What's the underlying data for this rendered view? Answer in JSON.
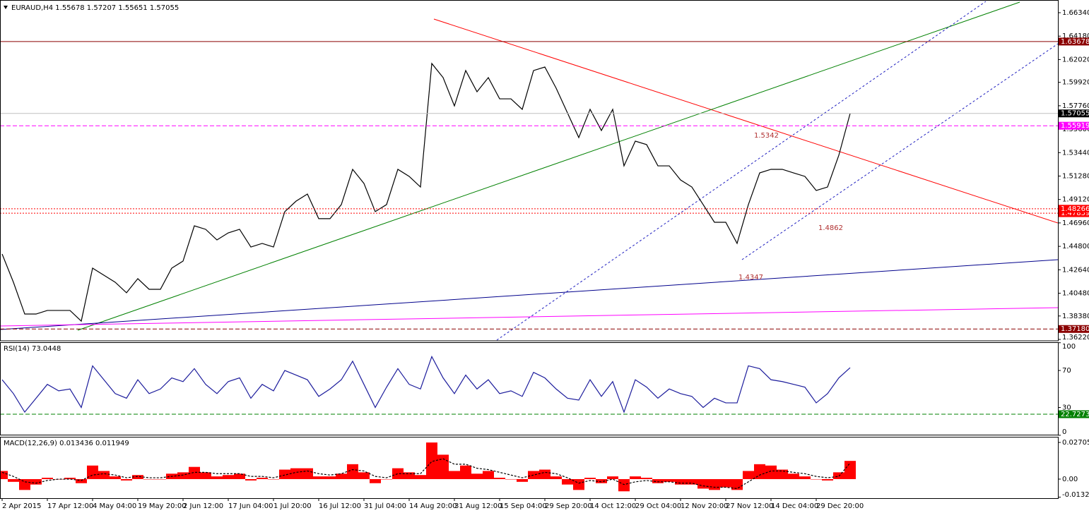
{
  "chart_data": [
    {
      "type": "line",
      "title": "EURAUD,H4 1.55678 1.57207 1.55651 1.57055",
      "categories": [
        "2 Apr 2015",
        null,
        null,
        null,
        "17 Apr 12:00",
        null,
        null,
        null,
        "4 May 04:00",
        null,
        null,
        null,
        "19 May 20:00",
        null,
        null,
        null,
        "2 Jun 12:00",
        null,
        null,
        null,
        "17 Jun 04:00",
        null,
        null,
        null,
        "1 Jul 20:00",
        null,
        null,
        null,
        "16 Jul 12:00",
        null,
        null,
        null,
        "31 Jul 04:00",
        null,
        null,
        null,
        "14 Aug 20:00",
        null,
        null,
        null,
        "31 Aug 12:00",
        null,
        null,
        null,
        "15 Sep 04:00",
        null,
        null,
        null,
        "29 Sep 20:00",
        null,
        null,
        null,
        "14 Oct 12:00",
        null,
        null,
        null,
        "29 Oct 04:00",
        null,
        null,
        null,
        "12 Nov 20:00",
        null,
        null,
        null,
        "27 Nov 12:00",
        null,
        null,
        null,
        "14 Dec 04:00",
        null,
        null,
        null,
        "29 Dec 20:00",
        null,
        null,
        null
      ],
      "values": [
        1.4409,
        1.4149,
        1.3856,
        1.3856,
        1.3889,
        1.3889,
        1.3889,
        1.3791,
        1.4279,
        1.4214,
        1.4149,
        1.4052,
        1.4182,
        1.4084,
        1.4084,
        1.4279,
        1.4344,
        1.4669,
        1.4637,
        1.4539,
        1.4604,
        1.4637,
        1.4474,
        1.4507,
        1.4474,
        1.48,
        1.4897,
        1.4962,
        1.4735,
        1.4735,
        1.4865,
        1.519,
        1.506,
        1.48,
        1.4865,
        1.519,
        1.5125,
        1.5027,
        1.6166,
        1.6036,
        1.5775,
        1.6101,
        1.5905,
        1.6036,
        1.584,
        1.584,
        1.5743,
        1.6101,
        1.6133,
        1.5938,
        1.571,
        1.5483,
        1.5743,
        1.5548,
        1.5743,
        1.5222,
        1.545,
        1.5418,
        1.5222,
        1.5222,
        1.5092,
        1.5027,
        1.4865,
        1.4702,
        1.4702,
        1.4507,
        1.4865,
        1.5157,
        1.519,
        1.519,
        1.5157,
        1.5125,
        1.4995,
        1.5027,
        1.532,
        1.57055
      ],
      "color": "#000000",
      "ylim": [
        1.3622,
        1.6634
      ],
      "yticks": [
        {
          "value": 1.6634,
          "label": "1.66340"
        },
        {
          "value": 1.6418,
          "label": "1.64180"
        },
        {
          "value": 1.6202,
          "label": "1.62020"
        },
        {
          "value": 1.5992,
          "label": "1.59920"
        },
        {
          "value": 1.5776,
          "label": "1.57760"
        },
        {
          "value": 1.556,
          "label": "1.55600"
        },
        {
          "value": 1.5344,
          "label": "1.53440"
        },
        {
          "value": 1.5128,
          "label": "1.51280"
        },
        {
          "value": 1.4912,
          "label": "1.49120"
        },
        {
          "value": 1.4696,
          "label": "1.46960"
        },
        {
          "value": 1.448,
          "label": "1.44800"
        },
        {
          "value": 1.4264,
          "label": "1.42640"
        },
        {
          "value": 1.4048,
          "label": "1.40480"
        },
        {
          "value": 1.3838,
          "label": "1.38380"
        },
        {
          "value": 1.3622,
          "label": "1.36220"
        }
      ],
      "levels": [
        {
          "value": 1.63678,
          "color": "#8b0000",
          "style": "solid"
        },
        {
          "value": 1.57055,
          "color": "#000000",
          "line_color": "#c0c0c0",
          "style": "solid"
        },
        {
          "value": 1.55919,
          "color": "#ff00ff",
          "style": "dashed"
        },
        {
          "value": 1.47859,
          "color": "#ff0000",
          "style": "dotted"
        },
        {
          "value": 1.48266,
          "color": "#ff0000",
          "style": "dotted"
        },
        {
          "value": 1.3718,
          "label": "1.37180",
          "color": "#8b0000",
          "style": "dashed"
        }
      ],
      "annotations": [
        "1.5342",
        "1.4862",
        "1.4347"
      ],
      "annotation_color": "#b03030"
    },
    {
      "type": "line",
      "title": "RSI(14) 73.0448",
      "values": [
        60,
        45,
        25,
        40,
        55,
        48,
        50,
        30,
        75,
        60,
        45,
        40,
        60,
        45,
        50,
        62,
        58,
        72,
        55,
        45,
        58,
        62,
        40,
        55,
        48,
        70,
        65,
        60,
        42,
        50,
        60,
        80,
        55,
        30,
        52,
        72,
        55,
        50,
        85,
        62,
        45,
        65,
        50,
        60,
        45,
        48,
        42,
        68,
        62,
        50,
        40,
        38,
        60,
        42,
        58,
        25,
        60,
        52,
        40,
        50,
        45,
        42,
        30,
        40,
        35,
        35,
        75,
        72,
        60,
        58,
        55,
        52,
        35,
        45,
        62,
        73.0448
      ],
      "color": "#1c1c9c",
      "ylim": [
        0,
        100
      ],
      "yticks": [
        100,
        70,
        30,
        0
      ],
      "levels": [
        {
          "value": 22.7273,
          "color": "#008000",
          "style": "dashed"
        }
      ]
    },
    {
      "type": "bar",
      "title": "MACD(12,26,9) 0.013436 0.011949",
      "series": [
        {
          "color": "#ff0000",
          "values": [
            0.006,
            -0.002,
            -0.008,
            -0.004,
            0.001,
            0,
            0.001,
            -0.003,
            0.01,
            0.006,
            0.002,
            -0.001,
            0.003,
            0,
            0,
            0.004,
            0.005,
            0.009,
            0.005,
            0.002,
            0.003,
            0.004,
            -0.001,
            0.001,
            0,
            0.007,
            0.008,
            0.008,
            0.002,
            0.002,
            0.004,
            0.011,
            0.005,
            -0.003,
            0,
            0.008,
            0.005,
            0.003,
            0.027,
            0.018,
            0.006,
            0.01,
            0.004,
            0.006,
            0.001,
            0,
            -0.002,
            0.006,
            0.007,
            0.002,
            -0.004,
            -0.008,
            0.001,
            -0.003,
            0.002,
            -0.009,
            0.002,
            0.001,
            -0.003,
            -0.002,
            -0.004,
            -0.004,
            -0.007,
            -0.008,
            -0.006,
            -0.008,
            0.006,
            0.011,
            0.01,
            0.007,
            0.004,
            0.002,
            0,
            -0.001,
            0.005,
            0.013436
          ]
        },
        {
          "type": "line",
          "color": "#000000",
          "values": [
            0.005,
            0.002,
            -0.002,
            -0.003,
            -0.001,
            0,
            0,
            -0.001,
            0.003,
            0.004,
            0.003,
            0.001,
            0.002,
            0.001,
            0.001,
            0.002,
            0.003,
            0.005,
            0.005,
            0.004,
            0.004,
            0.004,
            0.002,
            0.002,
            0.001,
            0.003,
            0.005,
            0.006,
            0.004,
            0.003,
            0.004,
            0.007,
            0.006,
            0.002,
            0.001,
            0.004,
            0.004,
            0.004,
            0.013,
            0.015,
            0.011,
            0.011,
            0.008,
            0.007,
            0.005,
            0.003,
            0.001,
            0.003,
            0.005,
            0.004,
            0.001,
            -0.003,
            -0.001,
            -0.002,
            0,
            -0.004,
            -0.002,
            -0.001,
            -0.002,
            -0.002,
            -0.003,
            -0.003,
            -0.005,
            -0.006,
            -0.006,
            -0.007,
            -0.002,
            0.003,
            0.006,
            0.006,
            0.005,
            0.004,
            0.002,
            0.001,
            0.002,
            0.011949
          ]
        }
      ],
      "ylim": [
        -0.013286,
        0.02705
      ],
      "yticks": [
        0.02705,
        {
          "value": 0,
          "label": "0.00"
        },
        -0.013286
      ]
    }
  ]
}
